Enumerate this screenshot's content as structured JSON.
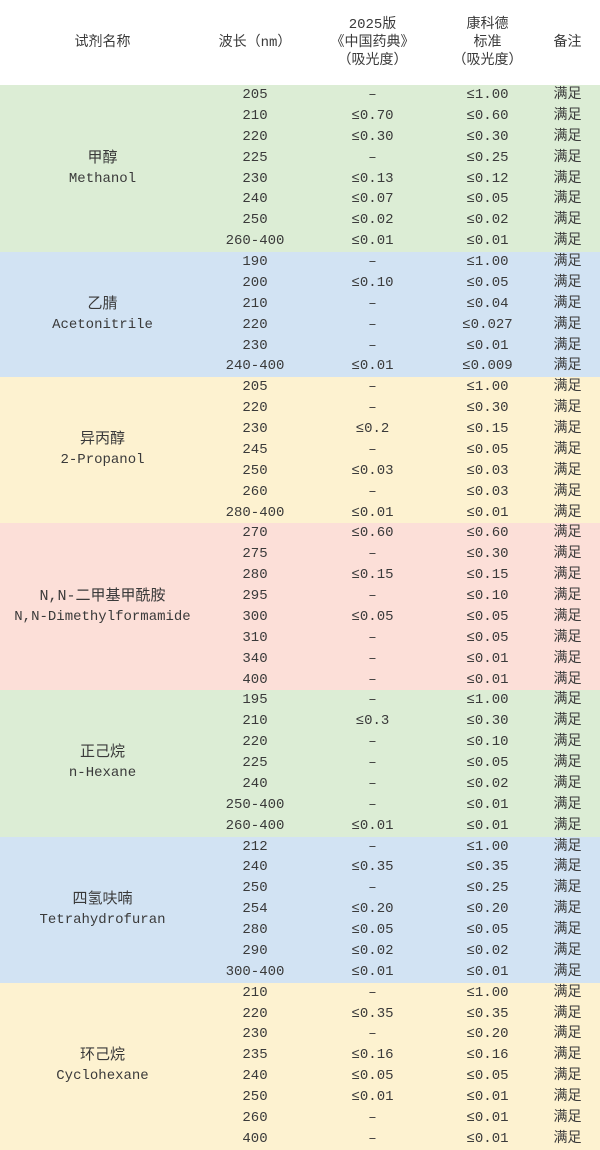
{
  "page": {
    "background": "#ffffff",
    "text_color": "#3a3a3a",
    "band_colors": {
      "green": "#dcedd5",
      "blue": "#d2e3f3",
      "cream": "#fdf2d0",
      "pink": "#fcdfd8"
    }
  },
  "table": {
    "columns": [
      {
        "id": "reagent",
        "lines": [
          "试剂名称"
        ]
      },
      {
        "id": "wavelength",
        "lines": [
          "波长（nm）"
        ]
      },
      {
        "id": "pharmacopoeia",
        "lines": [
          "2025版",
          "《中国药典》",
          "（吸光度）"
        ]
      },
      {
        "id": "concord",
        "lines": [
          "康科德",
          "标准",
          "（吸光度）"
        ]
      },
      {
        "id": "remark",
        "lines": [
          "备注"
        ]
      }
    ],
    "groups": [
      {
        "name_zh": "甲醇",
        "name_en": "Methanol",
        "color": "#dcedd5",
        "rows": [
          [
            "205",
            "–",
            "≤1.00",
            "满足"
          ],
          [
            "210",
            "≤0.70",
            "≤0.60",
            "满足"
          ],
          [
            "220",
            "≤0.30",
            "≤0.30",
            "满足"
          ],
          [
            "225",
            "–",
            "≤0.25",
            "满足"
          ],
          [
            "230",
            "≤0.13",
            "≤0.12",
            "满足"
          ],
          [
            "240",
            "≤0.07",
            "≤0.05",
            "满足"
          ],
          [
            "250",
            "≤0.02",
            "≤0.02",
            "满足"
          ],
          [
            "260-400",
            "≤0.01",
            "≤0.01",
            "满足"
          ]
        ]
      },
      {
        "name_zh": "乙腈",
        "name_en": "Acetonitrile",
        "color": "#d2e3f3",
        "rows": [
          [
            "190",
            "–",
            "≤1.00",
            "满足"
          ],
          [
            "200",
            "≤0.10",
            "≤0.05",
            "满足"
          ],
          [
            "210",
            "–",
            "≤0.04",
            "满足"
          ],
          [
            "220",
            "–",
            "≤0.027",
            "满足"
          ],
          [
            "230",
            "–",
            "≤0.01",
            "满足"
          ],
          [
            "240-400",
            "≤0.01",
            "≤0.009",
            "满足"
          ]
        ]
      },
      {
        "name_zh": "异丙醇",
        "name_en": "2-Propanol",
        "color": "#fdf2d0",
        "rows": [
          [
            "205",
            "–",
            "≤1.00",
            "满足"
          ],
          [
            "220",
            "–",
            "≤0.30",
            "满足"
          ],
          [
            "230",
            "≤0.2",
            "≤0.15",
            "满足"
          ],
          [
            "245",
            "–",
            "≤0.05",
            "满足"
          ],
          [
            "250",
            "≤0.03",
            "≤0.03",
            "满足"
          ],
          [
            "260",
            "–",
            "≤0.03",
            "满足"
          ],
          [
            "280-400",
            "≤0.01",
            "≤0.01",
            "满足"
          ]
        ]
      },
      {
        "name_zh": "N,N-二甲基甲酰胺",
        "name_en": "N,N-Dimethylformamide",
        "color": "#fcdfd8",
        "rows": [
          [
            "270",
            "≤0.60",
            "≤0.60",
            "满足"
          ],
          [
            "275",
            "–",
            "≤0.30",
            "满足"
          ],
          [
            "280",
            "≤0.15",
            "≤0.15",
            "满足"
          ],
          [
            "295",
            "–",
            "≤0.10",
            "满足"
          ],
          [
            "300",
            "≤0.05",
            "≤0.05",
            "满足"
          ],
          [
            "310",
            "–",
            "≤0.05",
            "满足"
          ],
          [
            "340",
            "–",
            "≤0.01",
            "满足"
          ],
          [
            "400",
            "–",
            "≤0.01",
            "满足"
          ]
        ]
      },
      {
        "name_zh": "正己烷",
        "name_en": "n-Hexane",
        "color": "#dcedd5",
        "rows": [
          [
            "195",
            "–",
            "≤1.00",
            "满足"
          ],
          [
            "210",
            "≤0.3",
            "≤0.30",
            "满足"
          ],
          [
            "220",
            "–",
            "≤0.10",
            "满足"
          ],
          [
            "225",
            "–",
            "≤0.05",
            "满足"
          ],
          [
            "240",
            "–",
            "≤0.02",
            "满足"
          ],
          [
            "250-400",
            "–",
            "≤0.01",
            "满足"
          ],
          [
            "260-400",
            "≤0.01",
            "≤0.01",
            "满足"
          ]
        ]
      },
      {
        "name_zh": "四氢呋喃",
        "name_en": "Tetrahydrofuran",
        "color": "#d2e3f3",
        "rows": [
          [
            "212",
            "–",
            "≤1.00",
            "满足"
          ],
          [
            "240",
            "≤0.35",
            "≤0.35",
            "满足"
          ],
          [
            "250",
            "–",
            "≤0.25",
            "满足"
          ],
          [
            "254",
            "≤0.20",
            "≤0.20",
            "满足"
          ],
          [
            "280",
            "≤0.05",
            "≤0.05",
            "满足"
          ],
          [
            "290",
            "≤0.02",
            "≤0.02",
            "满足"
          ],
          [
            "300-400",
            "≤0.01",
            "≤0.01",
            "满足"
          ]
        ]
      },
      {
        "name_zh": "环己烷",
        "name_en": "Cyclohexane",
        "color": "#fdf2d0",
        "rows": [
          [
            "210",
            "–",
            "≤1.00",
            "满足"
          ],
          [
            "220",
            "≤0.35",
            "≤0.35",
            "满足"
          ],
          [
            "230",
            "–",
            "≤0.20",
            "满足"
          ],
          [
            "235",
            "≤0.16",
            "≤0.16",
            "满足"
          ],
          [
            "240",
            "≤0.05",
            "≤0.05",
            "满足"
          ],
          [
            "250",
            "≤0.01",
            "≤0.01",
            "满足"
          ],
          [
            "260",
            "–",
            "≤0.01",
            "满足"
          ],
          [
            "400",
            "–",
            "≤0.01",
            "满足"
          ]
        ]
      }
    ]
  }
}
